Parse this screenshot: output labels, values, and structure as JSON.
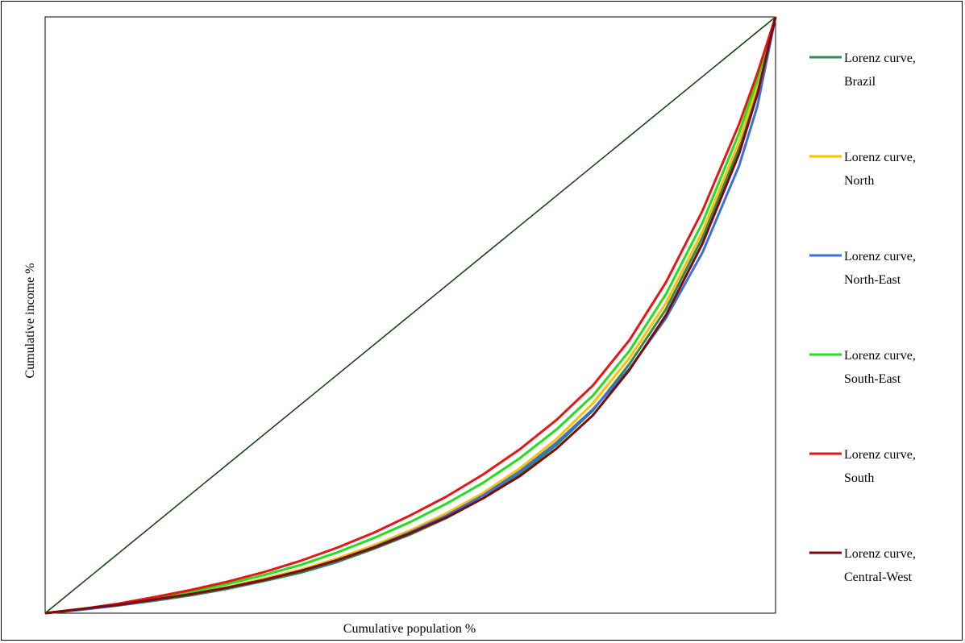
{
  "chart_data": {
    "type": "line",
    "title": "",
    "xlabel": "Cumulative population %",
    "ylabel": "Cumulative income %",
    "xlim": [
      0,
      100
    ],
    "ylim": [
      0,
      100
    ],
    "grid": false,
    "legend_position": "right",
    "x": [
      0,
      5,
      10,
      15,
      20,
      25,
      30,
      35,
      40,
      45,
      50,
      55,
      60,
      65,
      70,
      75,
      80,
      85,
      90,
      95,
      97.5,
      100
    ],
    "series": [
      {
        "name_lines": [
          "Lorenz curve,",
          "Brazil"
        ],
        "color": "#2e8b57",
        "values": [
          0,
          0.6,
          1.3,
          2.1,
          3.0,
          4.1,
          5.4,
          6.8,
          8.6,
          10.8,
          13.2,
          16.0,
          19.3,
          23.4,
          28.2,
          34.0,
          41.8,
          51.0,
          63.0,
          78.0,
          88.0,
          100
        ]
      },
      {
        "name_lines": [
          "Lorenz curve,",
          "North"
        ],
        "color": "#ffc000",
        "values": [
          0,
          0.7,
          1.4,
          2.3,
          3.3,
          4.4,
          5.8,
          7.3,
          9.2,
          11.4,
          13.9,
          16.8,
          20.2,
          24.3,
          29.2,
          35.2,
          42.8,
          52.0,
          64.0,
          79.0,
          88.5,
          100
        ]
      },
      {
        "name_lines": [
          "Lorenz curve,",
          "North-East"
        ],
        "color": "#3a6fe0",
        "values": [
          0,
          0.6,
          1.3,
          2.2,
          3.2,
          4.3,
          5.6,
          7.1,
          8.9,
          11.1,
          13.6,
          16.4,
          19.8,
          23.8,
          28.6,
          34.2,
          41.0,
          49.5,
          60.5,
          75.0,
          85.0,
          100
        ]
      },
      {
        "name_lines": [
          "Lorenz curve,",
          "South-East"
        ],
        "color": "#22e01a",
        "values": [
          0,
          0.7,
          1.5,
          2.5,
          3.6,
          4.9,
          6.4,
          8.1,
          10.2,
          12.6,
          15.3,
          18.4,
          21.9,
          26.0,
          30.8,
          36.5,
          44.0,
          53.5,
          65.5,
          80.5,
          89.5,
          100
        ]
      },
      {
        "name_lines": [
          "Lorenz curve,",
          "South"
        ],
        "color": "#e81515",
        "values": [
          0,
          0.7,
          1.6,
          2.7,
          3.9,
          5.3,
          6.9,
          8.8,
          11.0,
          13.5,
          16.4,
          19.6,
          23.3,
          27.5,
          32.4,
          38.2,
          45.8,
          55.5,
          67.5,
          82.0,
          90.5,
          100
        ]
      },
      {
        "name_lines": [
          "Lorenz curve,",
          "Central-West"
        ],
        "color": "#7b0a0a",
        "values": [
          0,
          0.7,
          1.4,
          2.3,
          3.2,
          4.3,
          5.6,
          7.1,
          8.9,
          11.0,
          13.4,
          16.1,
          19.3,
          23.0,
          27.6,
          33.2,
          40.8,
          50.0,
          62.0,
          77.0,
          87.0,
          100
        ]
      }
    ],
    "equality_line": {
      "color": "#0d3d0d",
      "values": [
        0,
        100
      ]
    }
  }
}
